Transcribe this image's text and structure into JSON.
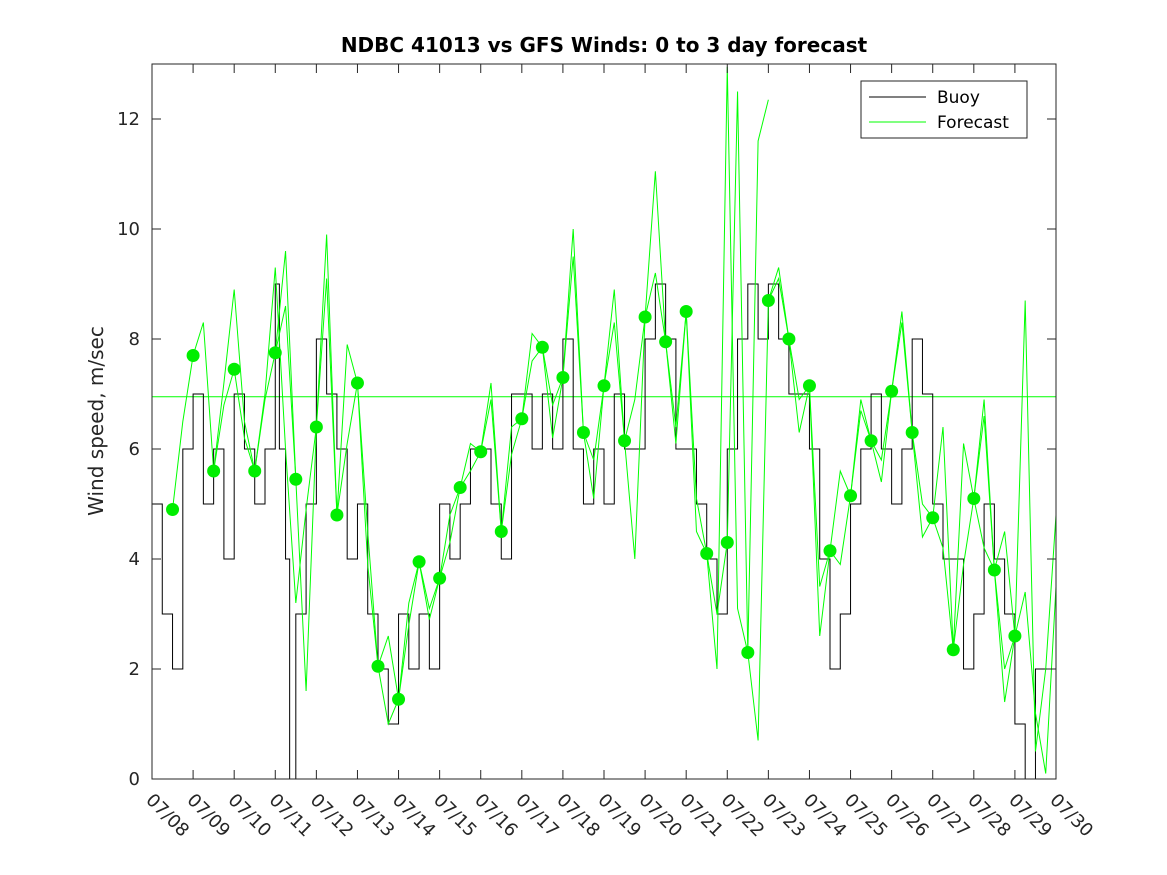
{
  "chart_data": {
    "type": "line",
    "title": "NDBC 41013 vs GFS Winds: 0 to 3 day forecast",
    "xlabel": "",
    "ylabel": "Wind speed, m/sec",
    "xlim": [
      "07/08",
      "07/30"
    ],
    "ylim": [
      0,
      13
    ],
    "x_ticks": [
      "07/08",
      "07/09",
      "07/10",
      "07/11",
      "07/12",
      "07/13",
      "07/14",
      "07/15",
      "07/16",
      "07/17",
      "07/18",
      "07/19",
      "07/20",
      "07/21",
      "07/22",
      "07/23",
      "07/24",
      "07/25",
      "07/26",
      "07/27",
      "07/28",
      "07/29",
      "07/30"
    ],
    "y_ticks": [
      0,
      2,
      4,
      6,
      8,
      10,
      12
    ],
    "grid": false,
    "legend": {
      "position": "top-right",
      "entries": [
        "Buoy",
        "Forecast"
      ]
    },
    "reference_line": {
      "y": 6.95
    },
    "colors": {
      "buoy": "#000000",
      "forecast": "#00ff00",
      "dots": "#00ee00"
    },
    "series": [
      {
        "name": "Buoy",
        "x": [
          8.0,
          8.25,
          8.5,
          8.75,
          9.0,
          9.25,
          9.5,
          9.75,
          10.0,
          10.25,
          10.5,
          10.75,
          11.0,
          11.1,
          11.25,
          11.35,
          11.5,
          11.75,
          12.0,
          12.25,
          12.5,
          12.75,
          13.0,
          13.25,
          13.5,
          13.75,
          14.0,
          14.25,
          14.5,
          14.75,
          15.0,
          15.25,
          15.5,
          15.75,
          16.0,
          16.25,
          16.5,
          16.75,
          17.0,
          17.25,
          17.5,
          17.75,
          18.0,
          18.25,
          18.5,
          18.75,
          19.0,
          19.25,
          19.5,
          19.75,
          20.0,
          20.25,
          20.5,
          20.75,
          21.0,
          21.25,
          21.5,
          21.75,
          22.0,
          22.25,
          22.5,
          22.75,
          23.0,
          23.25,
          23.5,
          23.75,
          24.0,
          24.25,
          24.5,
          24.75,
          25.0,
          25.25,
          25.5,
          25.75,
          26.0,
          26.25,
          26.5,
          26.75,
          27.0,
          27.25,
          27.5,
          27.75,
          28.0,
          28.25,
          28.5,
          28.75,
          29.0,
          29.25,
          29.5,
          29.75,
          30.0
        ],
        "values": [
          5,
          3,
          2,
          6,
          7,
          5,
          6,
          4,
          7,
          6,
          5,
          6,
          9,
          6,
          4,
          0,
          3,
          5,
          8,
          7,
          6,
          4,
          5,
          3,
          2,
          1,
          3,
          2,
          3,
          2,
          5,
          4,
          5,
          6,
          6,
          5,
          4,
          7,
          7,
          6,
          7,
          6,
          8,
          6,
          5,
          6,
          5,
          7,
          6,
          6,
          8,
          9,
          8,
          6,
          6,
          5,
          4,
          3,
          6,
          8,
          9,
          8,
          9,
          8,
          7,
          7,
          6,
          4,
          2,
          3,
          5,
          6,
          7,
          6,
          5,
          6,
          8,
          7,
          5,
          4,
          4,
          2,
          3,
          5,
          4,
          3,
          1,
          0,
          2,
          2,
          2
        ]
      },
      {
        "name": "Forecast",
        "dots": {
          "x": [
            8.5,
            9.0,
            9.5,
            10.0,
            10.5,
            11.0,
            11.5,
            12.0,
            12.5,
            13.0,
            13.5,
            14.0,
            14.5,
            15.0,
            15.5,
            16.0,
            16.5,
            17.0,
            17.5,
            18.0,
            18.5,
            19.0,
            19.5,
            20.0,
            20.5,
            21.0,
            21.5,
            22.0,
            22.5,
            23.0,
            23.5,
            24.0,
            24.5,
            25.0,
            25.5,
            26.0,
            26.5,
            27.0,
            27.5,
            28.0,
            28.5,
            29.0
          ],
          "values": [
            4.9,
            7.7,
            5.6,
            7.45,
            5.6,
            7.75,
            5.45,
            6.4,
            4.8,
            7.2,
            2.05,
            1.45,
            3.95,
            3.65,
            5.3,
            5.95,
            4.5,
            6.55,
            7.85,
            7.3,
            6.3,
            7.15,
            6.15,
            8.4,
            7.95,
            8.5,
            4.1,
            4.3,
            2.3,
            8.7,
            8.0,
            7.15,
            4.15,
            5.15,
            6.15,
            7.05,
            6.3,
            4.75,
            2.35,
            5.1,
            3.8,
            2.6
          ]
        },
        "lines": [
          {
            "x": [
              8.5,
              8.75,
              9.0,
              9.25,
              9.5,
              9.75,
              10.0,
              10.25,
              10.5,
              10.75,
              11.0,
              11.25,
              11.5
            ],
            "values": [
              4.9,
              6.5,
              7.7,
              8.3,
              5.6,
              6.8,
              7.45,
              6.2,
              5.6,
              6.9,
              7.75,
              8.6,
              5.45
            ]
          },
          {
            "x": [
              9.5,
              9.75,
              10.0,
              10.25,
              10.5,
              10.75,
              11.0,
              11.25,
              11.5,
              11.75,
              12.0,
              12.25,
              12.5
            ],
            "values": [
              5.6,
              7.2,
              8.9,
              6.5,
              5.6,
              7.0,
              9.3,
              6.0,
              3.2,
              4.9,
              6.4,
              9.9,
              4.8
            ]
          },
          {
            "x": [
              11.0,
              11.25,
              11.5,
              11.75,
              12.0,
              12.25,
              12.5,
              12.75,
              13.0,
              13.25,
              13.5,
              13.75,
              14.0
            ],
            "values": [
              7.75,
              9.6,
              5.45,
              1.6,
              6.4,
              9.1,
              4.8,
              6.1,
              7.2,
              4.5,
              2.05,
              1.0,
              1.45
            ]
          },
          {
            "x": [
              12.5,
              12.75,
              13.0,
              13.25,
              13.5,
              13.75,
              14.0,
              14.25,
              14.5,
              14.75,
              15.0,
              15.25,
              15.5
            ],
            "values": [
              4.8,
              7.9,
              7.2,
              3.9,
              2.05,
              2.6,
              1.45,
              3.2,
              3.95,
              3.1,
              3.65,
              4.3,
              5.3
            ]
          },
          {
            "x": [
              14.0,
              14.25,
              14.5,
              14.75,
              15.0,
              15.25,
              15.5,
              15.75,
              16.0,
              16.25,
              16.5,
              16.75,
              17.0
            ],
            "values": [
              1.45,
              2.8,
              3.95,
              2.9,
              3.65,
              4.8,
              5.3,
              5.6,
              5.95,
              6.9,
              4.5,
              5.9,
              6.55
            ]
          },
          {
            "x": [
              15.5,
              15.75,
              16.0,
              16.25,
              16.5,
              16.75,
              17.0,
              17.25,
              17.5,
              17.75,
              18.0,
              18.25,
              18.5
            ],
            "values": [
              5.3,
              6.1,
              5.95,
              7.2,
              4.5,
              6.4,
              6.55,
              8.1,
              7.85,
              6.8,
              7.3,
              10.0,
              6.3
            ]
          },
          {
            "x": [
              17.0,
              17.25,
              17.5,
              17.75,
              18.0,
              18.25,
              18.5,
              18.75,
              19.0,
              19.25,
              19.5,
              19.75,
              20.0
            ],
            "values": [
              6.55,
              7.6,
              7.85,
              6.2,
              7.3,
              9.5,
              6.3,
              5.1,
              7.15,
              8.9,
              6.15,
              4.0,
              8.4
            ]
          },
          {
            "x": [
              18.5,
              18.75,
              19.0,
              19.25,
              19.5,
              19.75,
              20.0,
              20.25,
              20.5,
              20.75,
              21.0,
              21.25,
              21.5
            ],
            "values": [
              6.3,
              5.8,
              7.15,
              8.3,
              6.15,
              6.9,
              8.4,
              11.05,
              7.95,
              6.4,
              8.5,
              5.1,
              4.1
            ]
          },
          {
            "x": [
              20.0,
              20.25,
              20.5,
              20.75,
              21.0,
              21.25,
              21.5,
              21.75,
              22.0,
              22.25,
              22.5,
              22.75,
              23.0
            ],
            "values": [
              8.4,
              9.2,
              7.95,
              6.1,
              8.5,
              4.5,
              4.1,
              2.0,
              12.95,
              3.1,
              2.3,
              11.6,
              12.35
            ]
          },
          {
            "x": [
              21.5,
              21.75,
              22.0,
              22.25,
              22.5,
              22.75,
              23.0,
              23.25,
              23.5,
              23.75,
              24.0,
              24.25,
              24.5
            ],
            "values": [
              4.1,
              3.0,
              4.3,
              12.5,
              2.3,
              0.7,
              8.7,
              9.1,
              8.0,
              6.3,
              7.15,
              2.6,
              4.15
            ]
          },
          {
            "x": [
              23.0,
              23.25,
              23.5,
              23.75,
              24.0,
              24.25,
              24.5,
              24.75,
              25.0,
              25.25,
              25.5,
              25.75,
              26.0
            ],
            "values": [
              8.7,
              9.3,
              8.0,
              6.9,
              7.15,
              3.5,
              4.15,
              3.9,
              5.15,
              6.7,
              6.15,
              5.4,
              7.05
            ]
          },
          {
            "x": [
              24.5,
              24.75,
              25.0,
              25.25,
              25.5,
              25.75,
              26.0,
              26.25,
              26.5,
              26.75,
              27.0,
              27.25,
              27.5
            ],
            "values": [
              4.15,
              5.6,
              5.15,
              6.9,
              6.15,
              5.8,
              7.05,
              8.5,
              6.3,
              5.0,
              4.75,
              4.2,
              2.35
            ]
          },
          {
            "x": [
              26.0,
              26.25,
              26.5,
              26.75,
              27.0,
              27.25,
              27.5,
              27.75,
              28.0,
              28.25,
              28.5,
              28.75,
              29.0
            ],
            "values": [
              7.05,
              8.3,
              6.3,
              4.4,
              4.75,
              6.4,
              2.35,
              6.1,
              5.1,
              6.9,
              3.8,
              4.5,
              2.6
            ]
          },
          {
            "x": [
              27.5,
              27.75,
              28.0,
              28.25,
              28.5,
              28.75,
              29.0,
              29.25,
              29.5,
              29.75,
              30.0
            ],
            "values": [
              2.35,
              3.9,
              5.1,
              6.6,
              3.8,
              1.4,
              2.6,
              8.7,
              0.5,
              2.0,
              4.8
            ]
          },
          {
            "x": [
              28.0,
              28.25,
              28.5,
              28.75,
              29.0,
              29.25,
              29.5,
              29.75,
              30.0
            ],
            "values": [
              5.1,
              4.2,
              3.8,
              2.0,
              2.6,
              3.4,
              1.2,
              0.1,
              3.5
            ]
          }
        ]
      }
    ]
  }
}
